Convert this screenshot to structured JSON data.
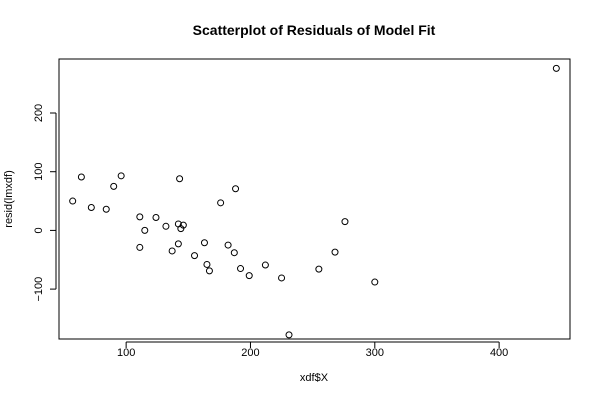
{
  "chart_data": {
    "type": "scatter",
    "title": "Scatterplot of Residuals of Model Fit",
    "xlabel": "xdf$X",
    "ylabel": "resid(lmxdf)",
    "xlim": [
      46,
      457
    ],
    "ylim": [
      -185,
      292
    ],
    "xticks": [
      100,
      200,
      300,
      400
    ],
    "yticks": [
      -100,
      0,
      100,
      200
    ],
    "xtick_labels": [
      "100",
      "200",
      "300",
      "400"
    ],
    "ytick_labels": [
      "−100",
      "0",
      "100",
      "200"
    ],
    "grid": false,
    "points": [
      {
        "x": 57,
        "y": 50
      },
      {
        "x": 64,
        "y": 91
      },
      {
        "x": 72,
        "y": 39
      },
      {
        "x": 84,
        "y": 36
      },
      {
        "x": 90,
        "y": 75
      },
      {
        "x": 96,
        "y": 93
      },
      {
        "x": 111,
        "y": 23
      },
      {
        "x": 111,
        "y": -29
      },
      {
        "x": 115,
        "y": 0
      },
      {
        "x": 124,
        "y": 22
      },
      {
        "x": 132,
        "y": 7
      },
      {
        "x": 137,
        "y": -35
      },
      {
        "x": 142,
        "y": 11
      },
      {
        "x": 142,
        "y": -23
      },
      {
        "x": 143,
        "y": 88
      },
      {
        "x": 144,
        "y": 3
      },
      {
        "x": 146,
        "y": 9
      },
      {
        "x": 155,
        "y": -43
      },
      {
        "x": 163,
        "y": -21
      },
      {
        "x": 165,
        "y": -58
      },
      {
        "x": 167,
        "y": -69
      },
      {
        "x": 176,
        "y": 47
      },
      {
        "x": 182,
        "y": -25
      },
      {
        "x": 187,
        "y": -38
      },
      {
        "x": 188,
        "y": 71
      },
      {
        "x": 192,
        "y": -65
      },
      {
        "x": 199,
        "y": -77
      },
      {
        "x": 212,
        "y": -59
      },
      {
        "x": 225,
        "y": -81
      },
      {
        "x": 231,
        "y": -178
      },
      {
        "x": 255,
        "y": -66
      },
      {
        "x": 268,
        "y": -37
      },
      {
        "x": 276,
        "y": 15
      },
      {
        "x": 300,
        "y": -88
      },
      {
        "x": 446,
        "y": 276
      }
    ]
  }
}
